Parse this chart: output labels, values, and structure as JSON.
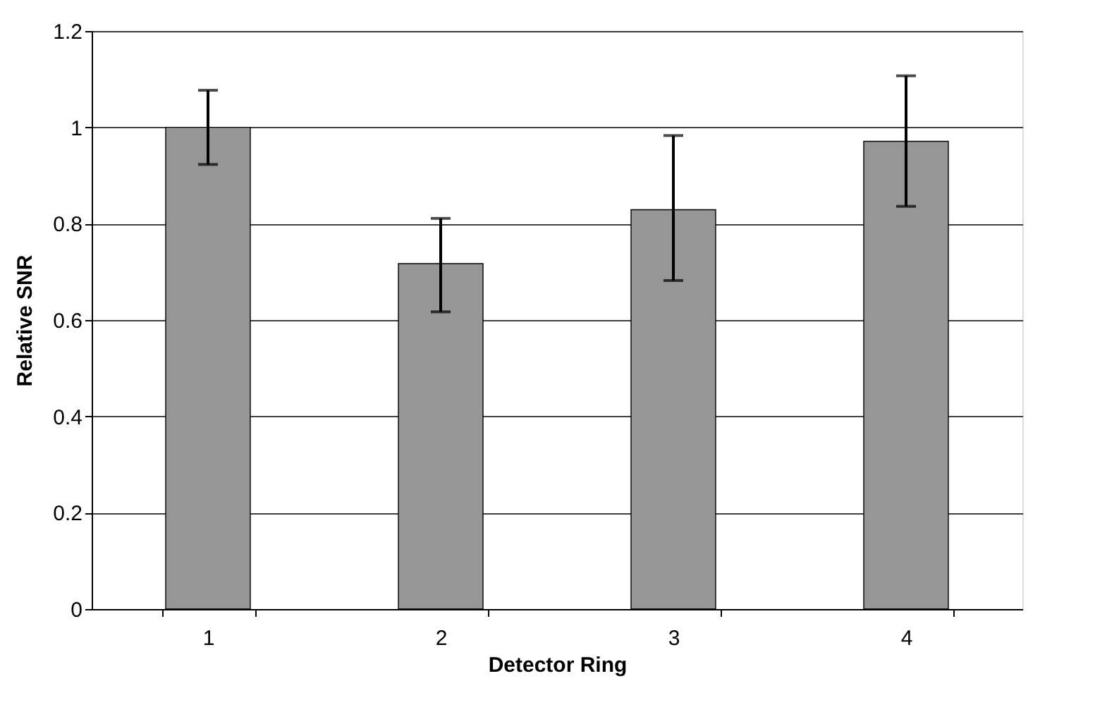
{
  "chart_data": {
    "type": "bar",
    "xlabel": "Detector Ring",
    "ylabel": "Relative SNR",
    "categories": [
      "1",
      "2",
      "3",
      "4"
    ],
    "values": [
      1.0,
      0.717,
      0.829,
      0.971
    ],
    "errors": [
      [
        0.923,
        1.077
      ],
      [
        0.617,
        0.811
      ],
      [
        0.682,
        0.983
      ],
      [
        0.836,
        1.107
      ]
    ],
    "color": "#969696",
    "ylim": [
      0,
      1.2
    ],
    "yticks": [
      0,
      0.2,
      0.4,
      0.6,
      0.8,
      1,
      1.2
    ],
    "grid": "y"
  }
}
